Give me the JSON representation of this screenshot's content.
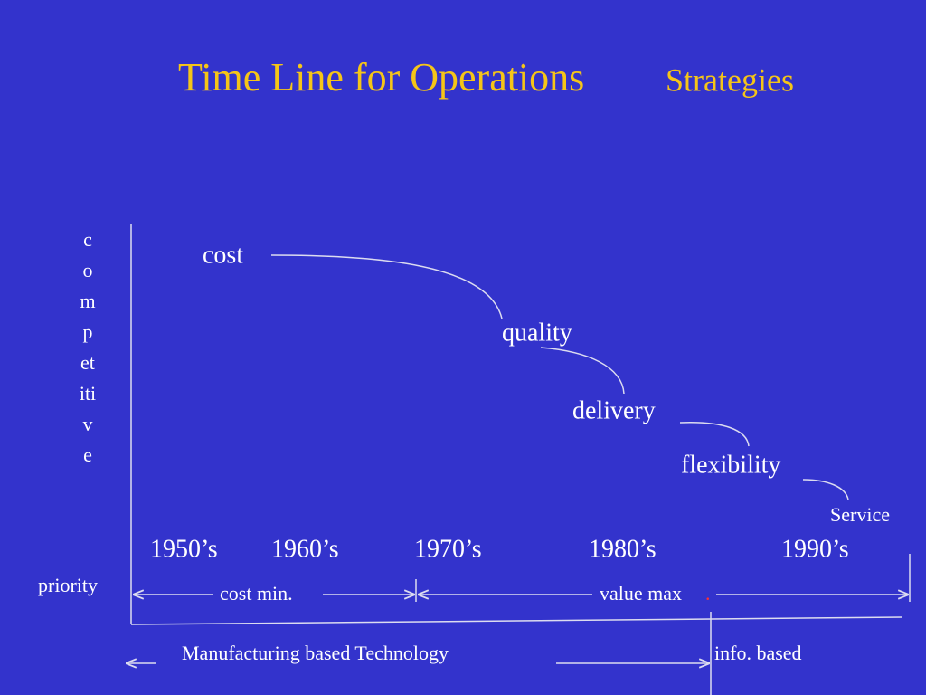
{
  "title": {
    "main": "Time Line for Operations",
    "tail": "Strategies"
  },
  "axis_label": {
    "vertical": "competitive",
    "bottom": "priority"
  },
  "stages": [
    "cost",
    "quality",
    "delivery",
    "flexibility",
    "Service"
  ],
  "decades": [
    "1950’s",
    "1960’s",
    "1970’s",
    "1980’s",
    "1990’s"
  ],
  "spans": {
    "first": "cost min.",
    "second": "value max",
    "second_mark": "."
  },
  "technology": {
    "left": "Manufacturing based Technology",
    "right": "info. based"
  }
}
